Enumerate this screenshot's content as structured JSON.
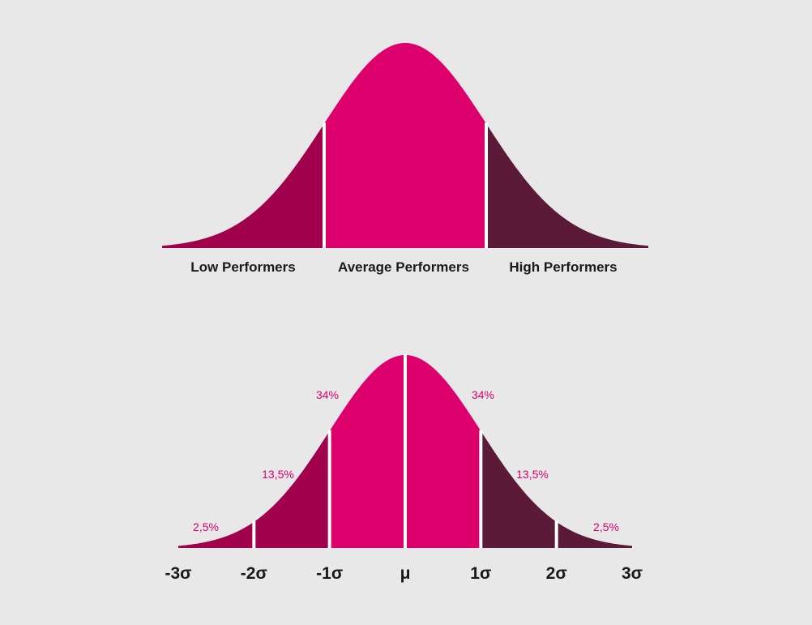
{
  "chart_data": [
    {
      "type": "area",
      "distribution": "normal",
      "x_range_sigma": [
        -3,
        3
      ],
      "segments": [
        {
          "label": "Low Performers",
          "from_sigma": -3,
          "to_sigma": -1,
          "color": "#a1004d"
        },
        {
          "label": "Average Performers",
          "from_sigma": -1,
          "to_sigma": 1,
          "color": "#dd006c"
        },
        {
          "label": "High Performers",
          "from_sigma": 1,
          "to_sigma": 3,
          "color": "#5a1a38"
        }
      ]
    },
    {
      "type": "area",
      "distribution": "normal",
      "x_range_sigma": [
        -3,
        3
      ],
      "tick_labels": [
        "-3σ",
        "-2σ",
        "-1σ",
        "μ",
        "1σ",
        "2σ",
        "3σ"
      ],
      "tick_values_sigma": [
        -3,
        -2,
        -1,
        0,
        1,
        2,
        3
      ],
      "segments": [
        {
          "from_sigma": -3,
          "to_sigma": -2,
          "percent_label": "2,5%",
          "color": "#a1004d"
        },
        {
          "from_sigma": -2,
          "to_sigma": -1,
          "percent_label": "13,5%",
          "color": "#a1004d"
        },
        {
          "from_sigma": -1,
          "to_sigma": 0,
          "percent_label": "34%",
          "color": "#dd006c"
        },
        {
          "from_sigma": 0,
          "to_sigma": 1,
          "percent_label": "34%",
          "color": "#dd006c"
        },
        {
          "from_sigma": 1,
          "to_sigma": 2,
          "percent_label": "13,5%",
          "color": "#5a1a38"
        },
        {
          "from_sigma": 2,
          "to_sigma": 3,
          "percent_label": "2,5%",
          "color": "#5a1a38"
        }
      ],
      "percent_label_color": "#dd006c"
    }
  ],
  "colors": {
    "background": "#e8e8e8",
    "divider": "#ffffff",
    "label_text": "#1a1a1a"
  }
}
